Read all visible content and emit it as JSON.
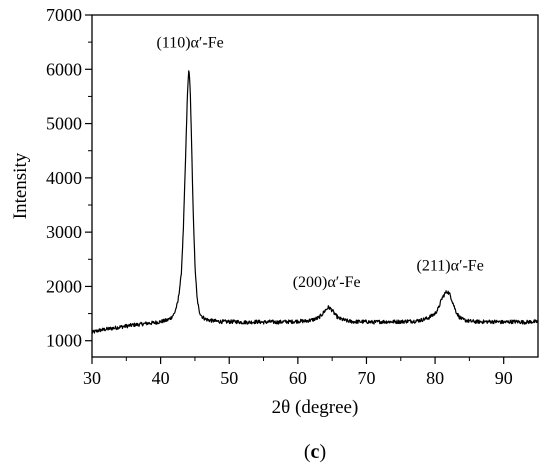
{
  "chart_data": {
    "type": "line",
    "xlabel": "2θ (degree)",
    "ylabel": "Intensity",
    "xlim": [
      30,
      95
    ],
    "ylim": [
      700,
      7000
    ],
    "xticks": [
      30,
      40,
      50,
      60,
      70,
      80,
      90
    ],
    "yticks": [
      1000,
      2000,
      3000,
      4000,
      5000,
      6000,
      7000
    ],
    "grid": false,
    "panel_label": {
      "open": "(",
      "letter": "c",
      "close": ")"
    },
    "series": [
      {
        "color": "#000000",
        "x": [
          30,
          31,
          32,
          33,
          34,
          35,
          36,
          37,
          38,
          39,
          40,
          41,
          41.5,
          42,
          42.5,
          43,
          43.3,
          43.6,
          43.9,
          44.1,
          44.3,
          44.5,
          44.7,
          45,
          45.3,
          45.6,
          46,
          46.5,
          47,
          48,
          49,
          50,
          51,
          52,
          53,
          54,
          55,
          56,
          57,
          58,
          59,
          60,
          61,
          62,
          63,
          63.5,
          64,
          64.5,
          65,
          65.5,
          66,
          67,
          68,
          69,
          70,
          71,
          72,
          73,
          74,
          75,
          76,
          77,
          78,
          79,
          80,
          80.5,
          81,
          81.5,
          81.8,
          82.2,
          82.6,
          83,
          83.5,
          84,
          85,
          86,
          87,
          88,
          89,
          90,
          91,
          92,
          93,
          94,
          95
        ],
        "y": [
          1150,
          1190,
          1210,
          1230,
          1250,
          1270,
          1290,
          1300,
          1320,
          1330,
          1350,
          1380,
          1420,
          1500,
          1700,
          2200,
          3000,
          4200,
          5500,
          6000,
          5700,
          4700,
          3600,
          2400,
          1800,
          1550,
          1450,
          1400,
          1380,
          1360,
          1350,
          1350,
          1350,
          1340,
          1340,
          1350,
          1340,
          1350,
          1340,
          1350,
          1350,
          1360,
          1360,
          1380,
          1420,
          1480,
          1560,
          1620,
          1560,
          1470,
          1410,
          1370,
          1350,
          1350,
          1350,
          1340,
          1350,
          1350,
          1350,
          1350,
          1360,
          1360,
          1380,
          1420,
          1500,
          1600,
          1780,
          1880,
          1910,
          1840,
          1700,
          1550,
          1440,
          1390,
          1360,
          1350,
          1350,
          1350,
          1350,
          1340,
          1350,
          1350,
          1340,
          1350,
          1350
        ]
      }
    ],
    "annotations": [
      {
        "text": "(110)α′-Fe",
        "x": 44.3,
        "y": 6400
      },
      {
        "text": "(200)α′-Fe",
        "x": 64.2,
        "y": 1990
      },
      {
        "text": "(211)α′-Fe",
        "x": 82.2,
        "y": 2290
      }
    ]
  }
}
